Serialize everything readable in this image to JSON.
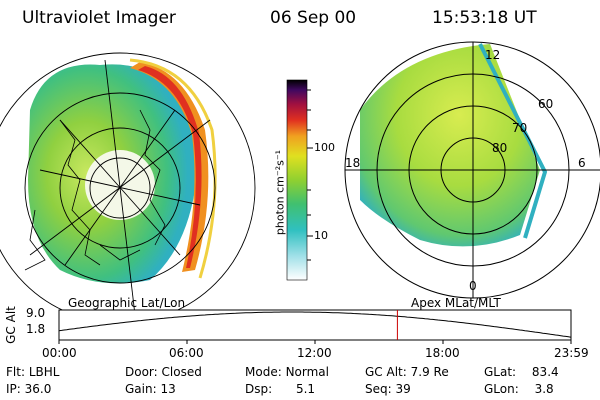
{
  "header": {
    "instrument": "Ultraviolet Imager",
    "date": "06 Sep 00",
    "time": "15:53:18 UT"
  },
  "colors": {
    "background": "#ffffff",
    "text": "#000000",
    "cursor_line": "#cc0000",
    "scale_top": "#000000",
    "scale_mid": "#b0e030",
    "scale_low": "#30c0c0",
    "scale_bottom": "#ffffff"
  },
  "left_map": {
    "label": "Geographic Lat/Lon"
  },
  "right_map": {
    "label": "Apex  MLat/MLT",
    "mlt_labels": [
      "12",
      "18",
      "6",
      "0"
    ],
    "lat_labels": [
      "60",
      "70",
      "80"
    ]
  },
  "colorbar": {
    "unit_label": "photon cm⁻²s⁻¹",
    "ticks": [
      "100",
      "10"
    ]
  },
  "altitude_plot": {
    "axis_label": "GC Alt",
    "y_ticks": [
      "9.0",
      "1.8"
    ],
    "x_ticks": [
      "00:00",
      "06:00",
      "12:00",
      "18:00",
      "23:59"
    ],
    "cursor_fraction": 0.661
  },
  "status": {
    "row1": [
      {
        "label": "Flt:",
        "value": "LBHL"
      },
      {
        "label": "Door:",
        "value": "Closed"
      },
      {
        "label": "Mode:",
        "value": "Normal"
      },
      {
        "label": "GC Alt:",
        "value": "7.9 Re"
      },
      {
        "label": "GLat:",
        "value": "83.4"
      }
    ],
    "row2": [
      {
        "label": "IP:",
        "value": "36.0"
      },
      {
        "label": "Gain:",
        "value": "13"
      },
      {
        "label": "Dsp:",
        "value": "5.1"
      },
      {
        "label": "Seq:",
        "value": "39"
      },
      {
        "label": "GLon:",
        "value": "3.8"
      }
    ]
  }
}
